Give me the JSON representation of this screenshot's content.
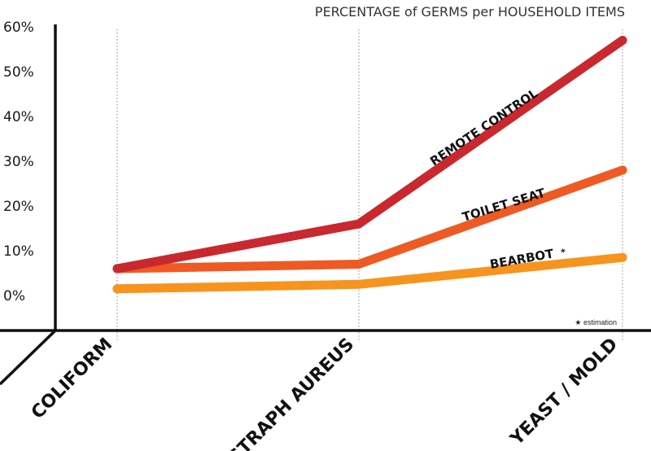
{
  "chart_data": {
    "type": "line",
    "title": "PERCENTAGE of GERMS per HOUSEHOLD ITEMS",
    "categories": [
      "COLIFORM",
      "STRAPH AUREUS",
      "YEAST / MOLD"
    ],
    "ylim": [
      0,
      60
    ],
    "yticks": [
      "0%",
      "10%",
      "20%",
      "30%",
      "40%",
      "50%",
      "60%"
    ],
    "grid": "vertical dotted lines at categories",
    "series": [
      {
        "name": "REMOTE CONTROL",
        "values": [
          6,
          16,
          57
        ],
        "color": "#c9282f"
      },
      {
        "name": "TOILET SEAT",
        "values": [
          6,
          7,
          28
        ],
        "color": "#ee5a24"
      },
      {
        "name": "BEARBOT",
        "marker": "*",
        "values": [
          1.5,
          2.5,
          8.5
        ],
        "color": "#f7941d"
      }
    ],
    "footnote": "★ estimation"
  }
}
